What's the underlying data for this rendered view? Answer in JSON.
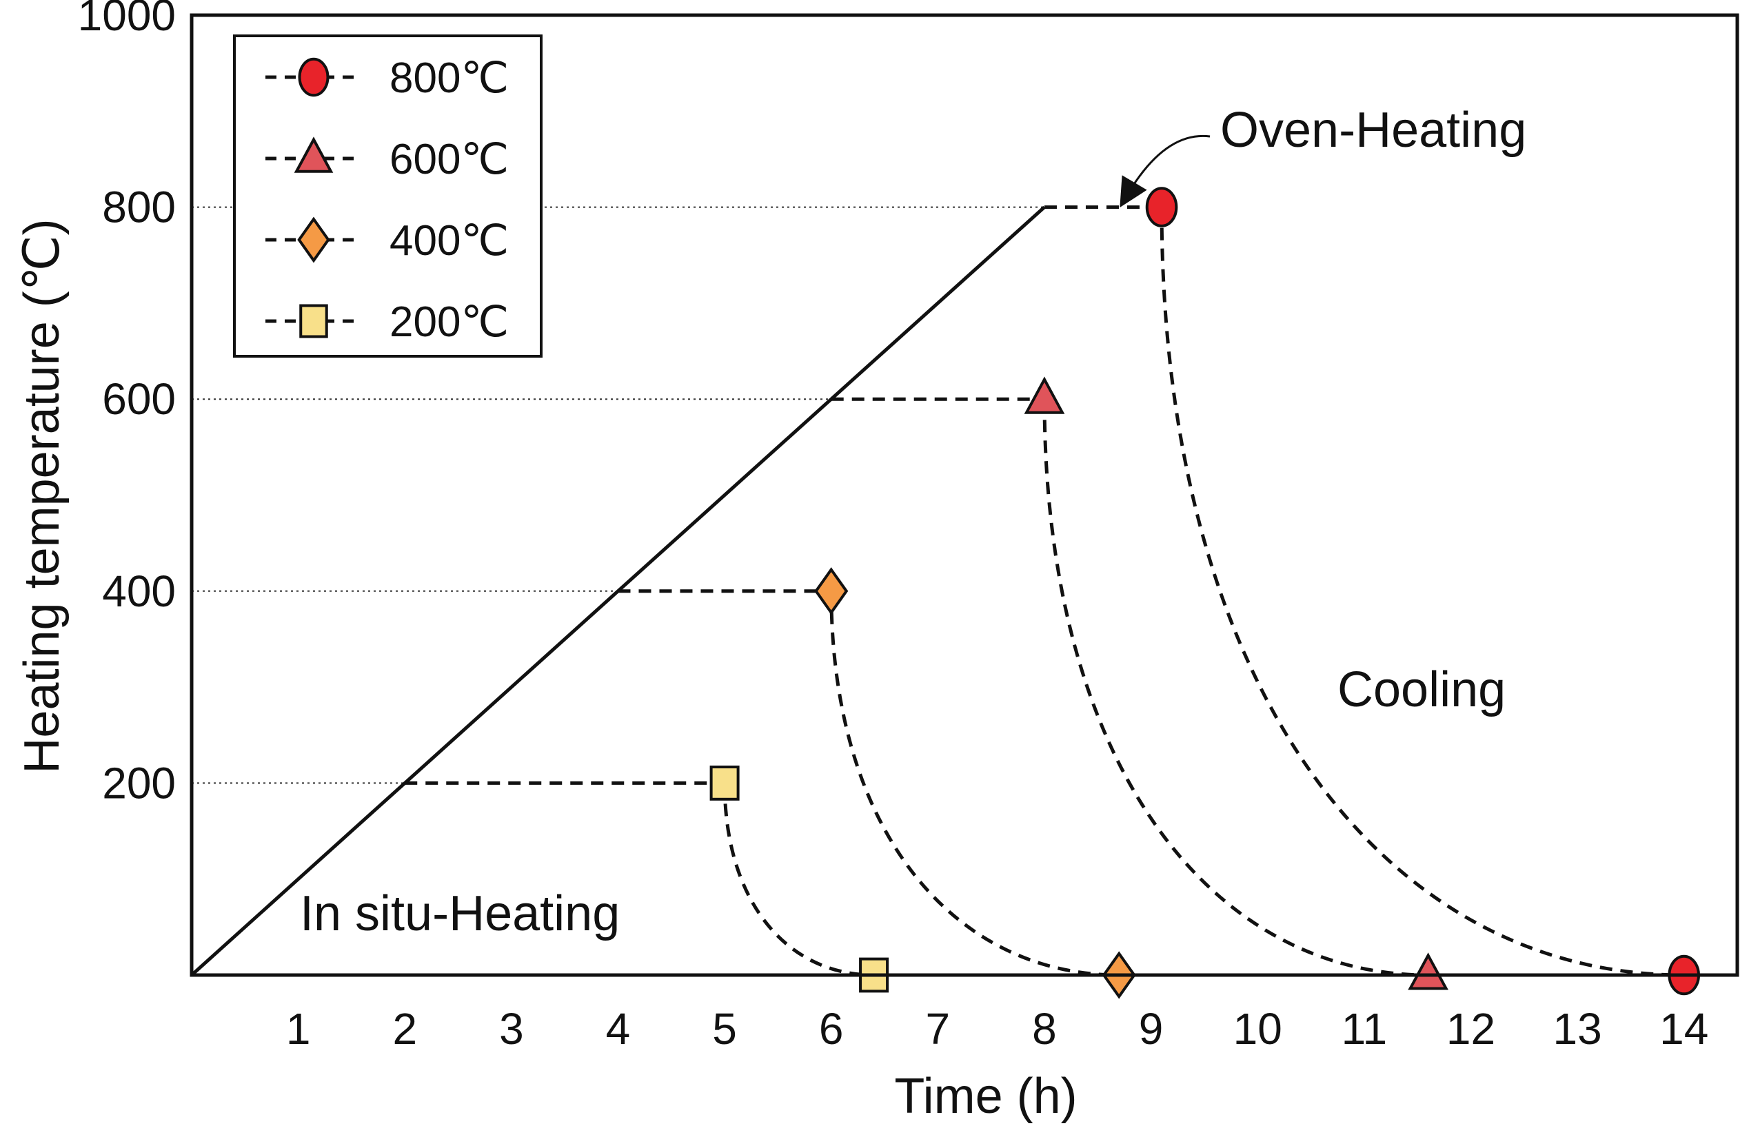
{
  "chart_data": {
    "type": "line",
    "title": "",
    "xlabel": "Time (h)",
    "ylabel": "Heating temperature (℃)",
    "xlim": [
      0,
      14.5
    ],
    "ylim": [
      0,
      1000
    ],
    "x_ticks": [
      "1",
      "2",
      "3",
      "4",
      "5",
      "6",
      "7",
      "8",
      "9",
      "10",
      "11",
      "12",
      "13",
      "14"
    ],
    "x_tick_values": [
      1,
      2,
      3,
      4,
      5,
      6,
      7,
      8,
      9,
      10,
      11,
      12,
      13,
      14
    ],
    "y_ticks": [
      "200",
      "400",
      "600",
      "800",
      "1000"
    ],
    "y_tick_values": [
      200,
      400,
      600,
      800,
      1000
    ],
    "ramp": {
      "name": "In situ-Heating ramp",
      "x": [
        0,
        8
      ],
      "y": [
        0,
        800
      ]
    },
    "series": [
      {
        "name": "800℃",
        "marker": "circle",
        "color": "#e8232a",
        "hold_start": [
          8,
          800
        ],
        "peak": [
          9.1,
          800
        ],
        "end": [
          14,
          0
        ]
      },
      {
        "name": "600℃",
        "marker": "triangle",
        "color": "#e0545a",
        "hold_start": [
          6,
          600
        ],
        "peak": [
          8.0,
          600
        ],
        "end": [
          11.6,
          0
        ]
      },
      {
        "name": "400℃",
        "marker": "diamond",
        "color": "#f59a45",
        "hold_start": [
          4,
          400
        ],
        "peak": [
          6.0,
          400
        ],
        "end": [
          8.7,
          0
        ]
      },
      {
        "name": "200℃",
        "marker": "square",
        "color": "#f8e08a",
        "hold_start": [
          2,
          200
        ],
        "peak": [
          5.0,
          200
        ],
        "end": [
          6.4,
          0
        ]
      }
    ],
    "annotations": {
      "oven": "Oven-Heating",
      "cooling": "Cooling",
      "insitu": "In situ-Heating"
    },
    "legend_position": "top-left",
    "grid": "dotted reference lines at 200, 400, 600, 800"
  }
}
